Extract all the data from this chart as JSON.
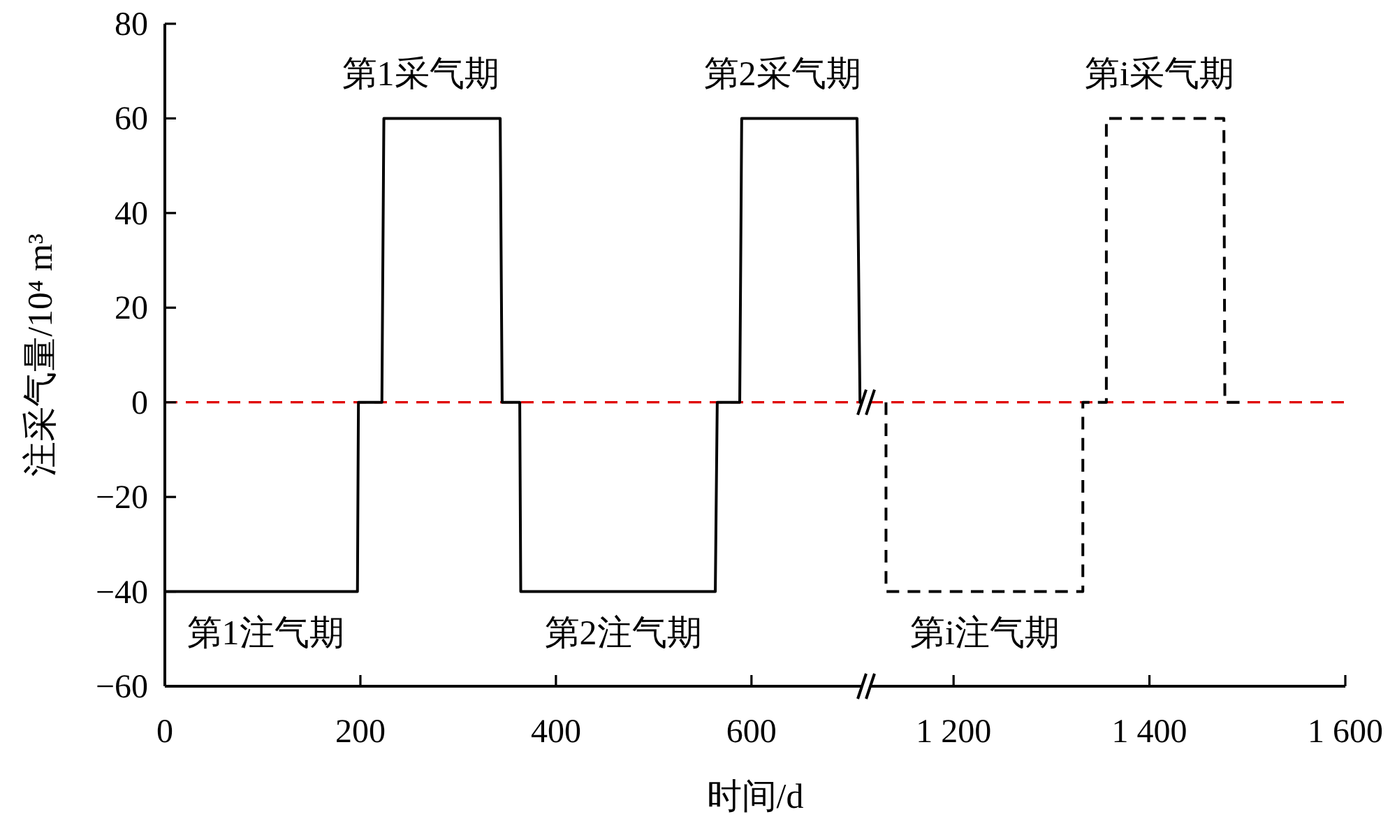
{
  "chart_data": [
    {
      "type": "line",
      "ylabel": "注采气量/10⁴ m³",
      "xlabel": "时间/d",
      "xlim": [
        0,
        713
      ],
      "ylim": [
        -60,
        80
      ],
      "xticks": [
        0,
        200,
        400,
        600
      ],
      "yticks": [
        {
          "value": -60,
          "label": "−60"
        },
        {
          "value": -40,
          "label": "−40"
        },
        {
          "value": -20,
          "label": "−20"
        },
        0,
        20,
        40,
        60,
        80
      ],
      "grid": false,
      "line_style": "solid",
      "series": [
        {
          "color": "#000000",
          "x": [
            0,
            197,
            198,
            222,
            224,
            343,
            345,
            363,
            364,
            563,
            565,
            588,
            590,
            708,
            711,
            713
          ],
          "values": [
            -40,
            -40,
            0,
            0,
            60,
            60,
            0,
            0,
            -40,
            -40,
            0,
            0,
            60,
            60,
            0,
            0
          ]
        }
      ],
      "ref_lines": [
        {
          "axis": "y",
          "value": 0,
          "color": "#e00000",
          "line_style": "dashed"
        }
      ],
      "annotations": [
        "第1注气期",
        "第1采气期",
        "第2注气期",
        "第2采气期"
      ]
    },
    {
      "type": "line",
      "xlim": [
        1115,
        1600
      ],
      "ylim": [
        -60,
        80
      ],
      "xticks": [
        {
          "value": 1200,
          "label": "1 200"
        },
        {
          "value": 1400,
          "label": "1 400"
        },
        {
          "value": 1600,
          "label": "1 600"
        }
      ],
      "tick_labels": "x",
      "grid": false,
      "line_style": "dashed",
      "series": [
        {
          "color": "#000000",
          "x": [
            1131,
            1131,
            1332,
            1332,
            1356,
            1356,
            1476,
            1477,
            1492
          ],
          "values": [
            0,
            -40,
            -40,
            0,
            0,
            60,
            60,
            0,
            0
          ]
        }
      ],
      "ref_lines": [
        {
          "axis": "y",
          "value": 0,
          "color": "#e00000",
          "line_style": "dashed"
        }
      ],
      "annotations": [
        "第i注气期",
        "第i采气期"
      ]
    }
  ]
}
